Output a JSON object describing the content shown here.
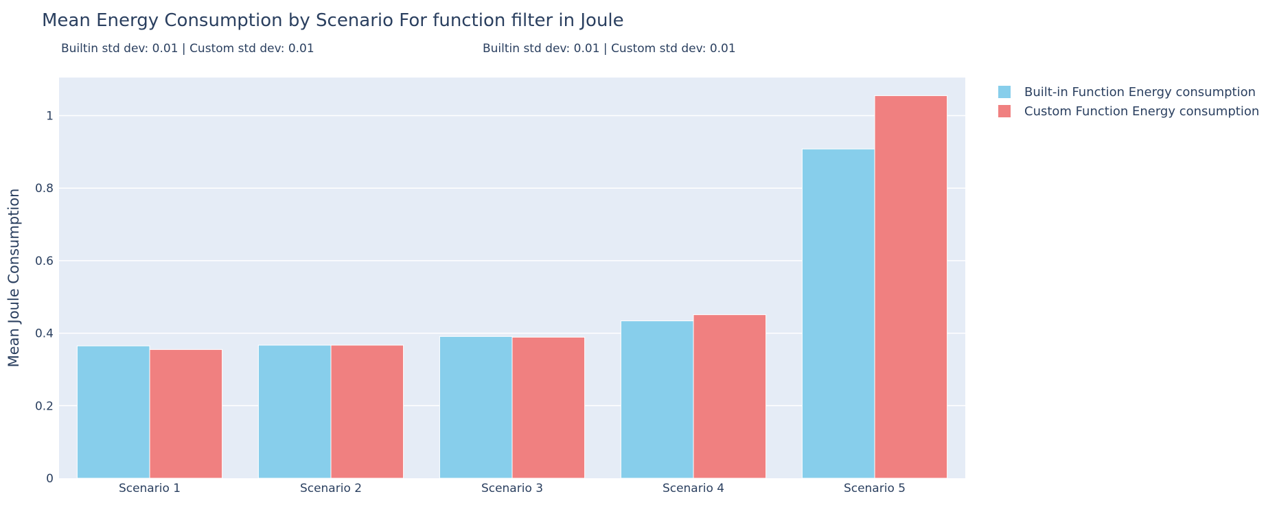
{
  "chart_data": {
    "type": "bar",
    "title": "Mean Energy Consumption by Scenario For function filter in Joule",
    "annotations": [
      "Builtin std dev: 0.01 | Custom std dev: 0.01",
      "Builtin std dev: 0.01 | Custom std dev: 0.01"
    ],
    "xlabel": "",
    "ylabel": "Mean Joule Consumption",
    "categories": [
      "Scenario 1",
      "Scenario 2",
      "Scenario 3",
      "Scenario 4",
      "Scenario 5"
    ],
    "series": [
      {
        "name": "Built-in Function Energy consumption",
        "color": "#87ceeb",
        "values": [
          0.365,
          0.367,
          0.391,
          0.434,
          0.908
        ]
      },
      {
        "name": "Custom Function Energy consumption",
        "color": "#f08080",
        "values": [
          0.355,
          0.367,
          0.389,
          0.451,
          1.055
        ]
      }
    ],
    "ylim": [
      0,
      1.105
    ],
    "yticks": [
      0,
      0.2,
      0.4,
      0.6,
      0.8,
      1
    ],
    "ytick_labels": [
      "0",
      "0.2",
      "0.4",
      "0.6",
      "0.8",
      "1"
    ],
    "grid": true,
    "plot_background": "#e5ecf6",
    "legend_position": "top-right, outside plot"
  }
}
